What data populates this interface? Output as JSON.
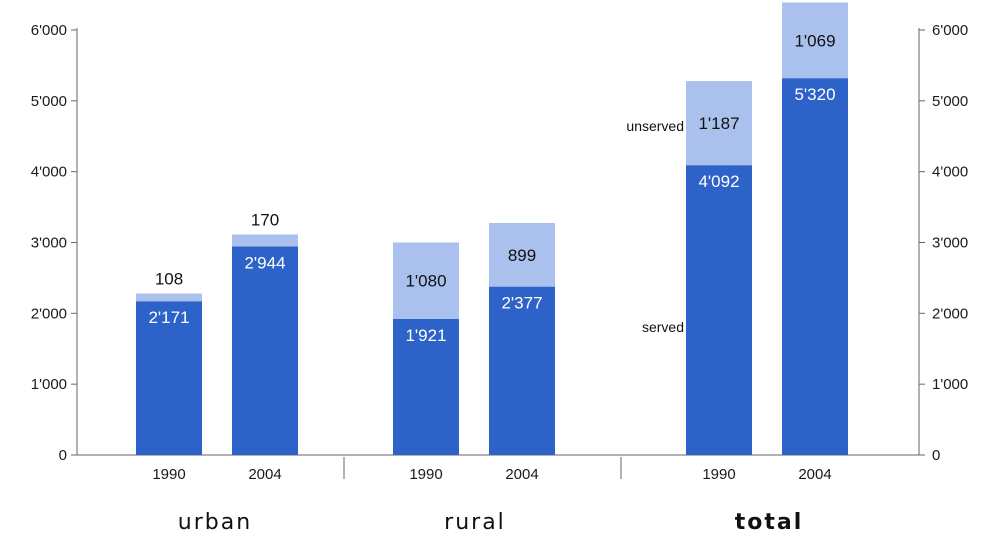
{
  "chart_data": {
    "type": "bar",
    "stacked": true,
    "y_ticks": [
      "0",
      "1'000",
      "2'000",
      "3'000",
      "4'000",
      "5'000",
      "6'000"
    ],
    "ylim": [
      0,
      6000
    ],
    "grid": false,
    "groups": [
      {
        "name": "urban",
        "bold": false,
        "bars": [
          {
            "x": "1990",
            "served": 2171,
            "unserved": 108,
            "served_label": "2'171",
            "unserved_label": "108"
          },
          {
            "x": "2004",
            "served": 2944,
            "unserved": 170,
            "served_label": "2'944",
            "unserved_label": "170"
          }
        ]
      },
      {
        "name": "rural",
        "bold": false,
        "bars": [
          {
            "x": "1990",
            "served": 1921,
            "unserved": 1080,
            "served_label": "1'921",
            "unserved_label": "1'080"
          },
          {
            "x": "2004",
            "served": 2377,
            "unserved": 899,
            "served_label": "2'377",
            "unserved_label": "899"
          }
        ]
      },
      {
        "name": "total",
        "bold": true,
        "bars": [
          {
            "x": "1990",
            "served": 4092,
            "unserved": 1187,
            "served_label": "4'092",
            "unserved_label": "1'187"
          },
          {
            "x": "2004",
            "served": 5320,
            "unserved": 1069,
            "served_label": "5'320",
            "unserved_label": "1'069"
          }
        ]
      }
    ],
    "series": [
      {
        "name": "served",
        "color": "#2d62c9"
      },
      {
        "name": "unserved",
        "color": "#a9c1ec"
      }
    ],
    "annotations": [
      "unserved",
      "served"
    ]
  }
}
